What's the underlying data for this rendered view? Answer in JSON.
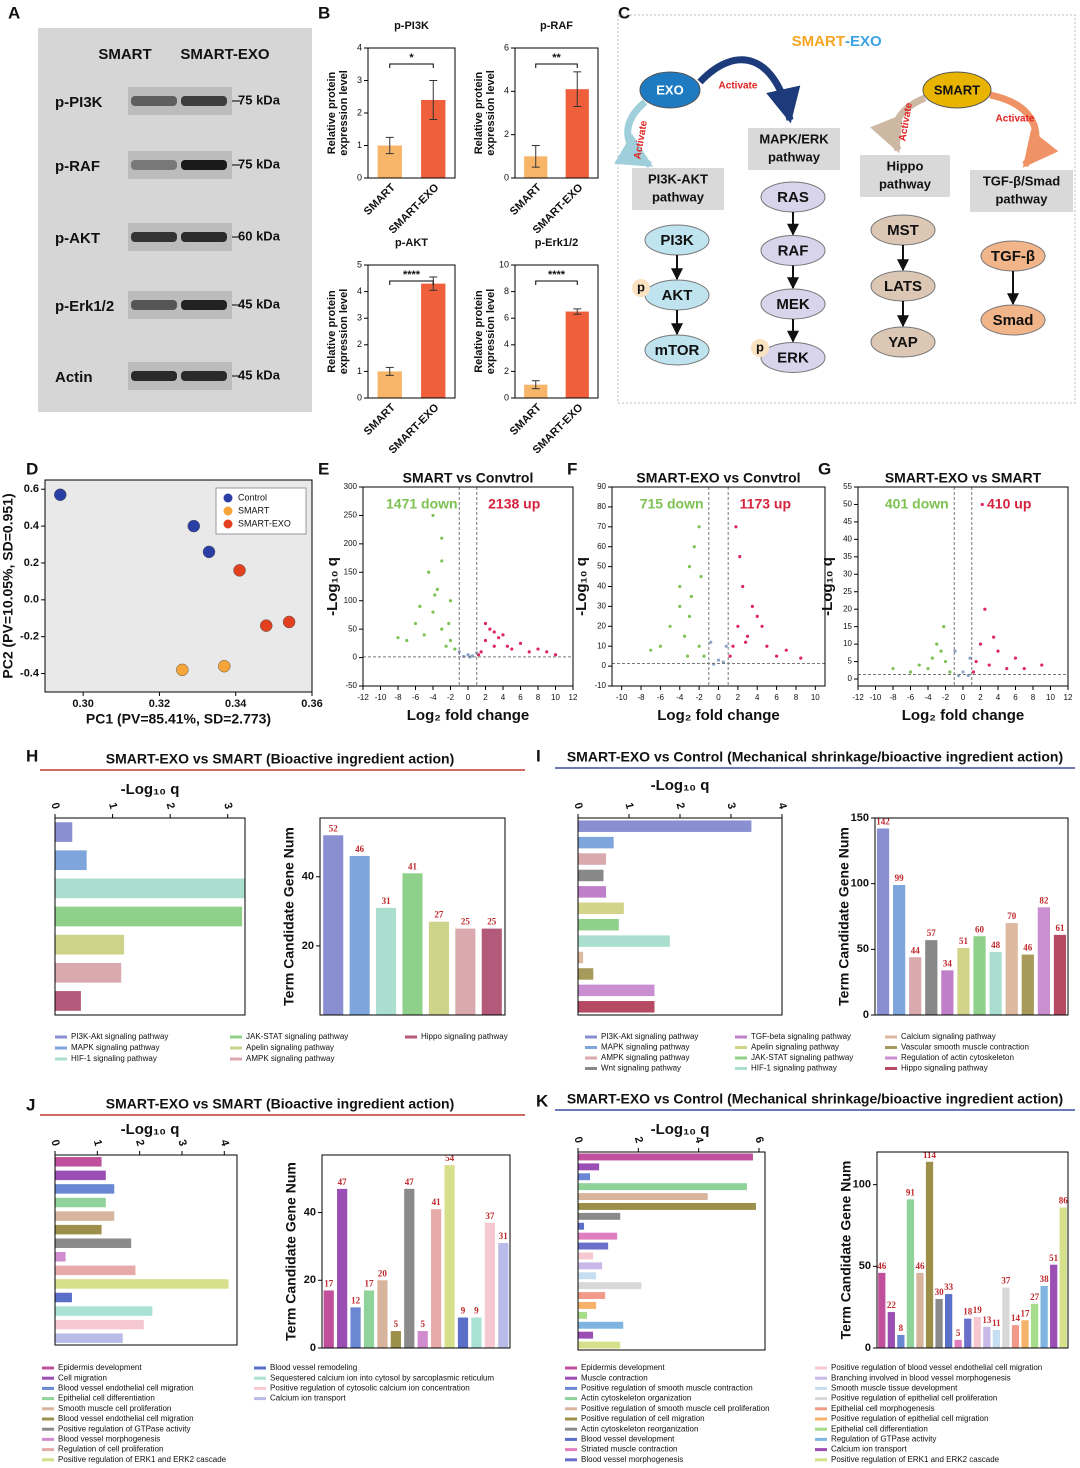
{
  "panel_labels": [
    "A",
    "B",
    "C",
    "D",
    "E",
    "F",
    "G",
    "H",
    "I",
    "J",
    "K"
  ],
  "blot": {
    "lanes": [
      "SMART",
      "SMART-EXO"
    ],
    "rows": [
      {
        "protein": "p-PI3K",
        "marker": "75 kDa"
      },
      {
        "protein": "p-RAF",
        "marker": "75 kDa"
      },
      {
        "protein": "p-AKT",
        "marker": "60 kDa"
      },
      {
        "protein": "p-Erk1/2",
        "marker": "45 kDa"
      },
      {
        "protein": "Actin",
        "marker": "45 kDa"
      }
    ]
  },
  "diagram": {
    "title": [
      "SMART",
      "-EXO"
    ],
    "sources": [
      "EXO",
      "SMART"
    ],
    "activate": [
      "Activate",
      "Activate",
      "Activate",
      "Activate"
    ],
    "pathways": [
      [
        "PI3K-AKT",
        "pathway"
      ],
      [
        "MAPK/ERK",
        "pathway"
      ],
      [
        "Hippo",
        "pathway"
      ],
      [
        "TGF-β/Smad",
        "pathway"
      ]
    ],
    "chains": [
      [
        "PI3K",
        "AKT",
        "mTOR"
      ],
      [
        "RAS",
        "RAF",
        "MEK",
        "ERK"
      ],
      [
        "MST",
        "LATS",
        "YAP"
      ],
      [
        "TGF-β",
        "Smad"
      ]
    ],
    "phospho": [
      "p",
      "p"
    ]
  },
  "chart_data": [
    {
      "type": "bar",
      "title": "p-PI3K",
      "y_label": [
        "Relative protein",
        "expression level"
      ],
      "categories": [
        "SMART",
        "SMART-EXO"
      ],
      "values": [
        1.0,
        2.4
      ],
      "errors": [
        0.25,
        0.6
      ],
      "colors": [
        "#f7b56a",
        "#ef5f3c"
      ],
      "ylim": [
        0,
        4
      ],
      "yticks": [
        0,
        1,
        2,
        3,
        4
      ],
      "significance": "*"
    },
    {
      "type": "bar",
      "title": "p-RAF",
      "y_label": [
        "Relative protein",
        "expression level"
      ],
      "categories": [
        "SMART",
        "SMART-EXO"
      ],
      "values": [
        1.0,
        4.1
      ],
      "errors": [
        0.5,
        0.8
      ],
      "colors": [
        "#f7b56a",
        "#ef5f3c"
      ],
      "ylim": [
        0,
        6
      ],
      "yticks": [
        0,
        2,
        4,
        6
      ],
      "significance": "**"
    },
    {
      "type": "bar",
      "title": "p-AKT",
      "y_label": [
        "Relative protein",
        "expression level"
      ],
      "categories": [
        "SMART",
        "SMART-EXO"
      ],
      "values": [
        1.0,
        4.3
      ],
      "errors": [
        0.15,
        0.25
      ],
      "colors": [
        "#f7b56a",
        "#ef5f3c"
      ],
      "ylim": [
        0,
        5
      ],
      "yticks": [
        0,
        1,
        2,
        3,
        4,
        5
      ],
      "significance": "****"
    },
    {
      "type": "bar",
      "title": "p-Erk1/2",
      "y_label": [
        "Relative protein",
        "expression level"
      ],
      "categories": [
        "SMART",
        "SMART-EXO"
      ],
      "values": [
        1.0,
        6.5
      ],
      "errors": [
        0.3,
        0.2
      ],
      "colors": [
        "#f7b56a",
        "#ef5f3c"
      ],
      "ylim": [
        0,
        10
      ],
      "yticks": [
        0,
        2,
        4,
        6,
        8,
        10
      ],
      "significance": "****"
    },
    {
      "type": "scatter",
      "x_label": "PC1 (PV=85.41%, SD=2.773)",
      "y_label": "PC2 (PV=10.05%, SD=0.951)",
      "legend": "upper right",
      "xlim": [
        0.29,
        0.36
      ],
      "xticks": [
        {
          "value": 0.3,
          "label": "0.30"
        },
        0.32,
        0.34,
        0.36
      ],
      "ylim": [
        -0.5,
        0.65
      ],
      "yticks": [
        -0.4,
        -0.2,
        {
          "value": 0,
          "label": "0.0"
        },
        0.2,
        0.4,
        0.6
      ],
      "series": [
        {
          "name": "Control",
          "color": "#2b3ea6",
          "x": [
            0.294,
            0.329,
            0.333
          ],
          "values": [
            0.57,
            0.4,
            0.26
          ]
        },
        {
          "name": "SMART",
          "color": "#f5a53a",
          "x": [
            0.326,
            0.337
          ],
          "values": [
            -0.38,
            -0.36
          ]
        },
        {
          "name": "SMART-EXO",
          "color": "#e2401f",
          "x": [
            0.341,
            0.348,
            0.354
          ],
          "values": [
            0.16,
            -0.14,
            -0.12
          ]
        }
      ]
    },
    {
      "type": "volcano",
      "title": "SMART vs Convtrol",
      "x_label": "Log₂ fold change",
      "y_label": "-Log₁₀ q",
      "xlim": [
        -12,
        12
      ],
      "xticks": [
        -12,
        -10,
        -8,
        -6,
        -4,
        -2,
        0,
        2,
        4,
        6,
        8,
        10,
        12
      ],
      "ylim": [
        -50,
        300
      ],
      "yticks": [
        -50,
        0,
        50,
        100,
        150,
        200,
        250,
        300
      ],
      "cutoff_x": [
        -1,
        1
      ],
      "cutoff_y": 1.3,
      "annotations": [
        {
          "text": "1471 down",
          "color": "#7dc253"
        },
        {
          "text": "2138 up",
          "color": "#d7223f"
        }
      ],
      "series": [
        {
          "color": "#7dc253",
          "x": [
            -2,
            -3,
            -4,
            -5,
            -3.5,
            -2.5,
            -6,
            -4.5,
            -3,
            -2,
            -7,
            -5.5,
            -1.5,
            -4,
            -3,
            -8,
            -2.2,
            -3.8
          ],
          "values": [
            30,
            50,
            80,
            40,
            120,
            20,
            60,
            150,
            210,
            100,
            30,
            90,
            15,
            250,
            170,
            35,
            60,
            110
          ]
        },
        {
          "color": "#e0245e",
          "x": [
            1.5,
            2,
            3,
            4,
            5,
            6,
            7,
            2.5,
            3.5,
            4.5,
            8,
            9,
            10,
            2,
            3,
            1.2
          ],
          "values": [
            10,
            30,
            20,
            40,
            15,
            25,
            10,
            50,
            35,
            20,
            15,
            10,
            5,
            60,
            45,
            5
          ]
        },
        {
          "color": "#8ea5c9",
          "x": [
            -0.5,
            0,
            0.5,
            -1,
            1,
            0.2
          ],
          "values": [
            2,
            5,
            3,
            10,
            8,
            1
          ]
        }
      ]
    },
    {
      "type": "volcano",
      "title": "SMART-EXO vs Convtrol",
      "x_label": "Log₂ fold change",
      "y_label": "-Log₁₀ q",
      "xlim": [
        -11,
        11
      ],
      "xticks": [
        -10,
        -8,
        -6,
        -4,
        -2,
        0,
        2,
        4,
        6,
        8,
        10
      ],
      "ylim": [
        -10,
        90
      ],
      "yticks": [
        -10,
        0,
        10,
        20,
        30,
        40,
        50,
        60,
        70,
        80,
        90
      ],
      "cutoff_x": [
        -1,
        1
      ],
      "cutoff_y": 1.3,
      "annotations": [
        {
          "text": "715 down",
          "color": "#7dc253"
        },
        {
          "text": "1173 up",
          "color": "#d7223f"
        }
      ],
      "series": [
        {
          "color": "#7dc253",
          "x": [
            -2,
            -3,
            -4,
            -2.5,
            -3.5,
            -5,
            -1.5,
            -2,
            -3,
            -6,
            -4,
            -2.8,
            -1.8,
            -3.2,
            -7
          ],
          "values": [
            10,
            25,
            40,
            60,
            15,
            20,
            5,
            70,
            50,
            10,
            30,
            35,
            45,
            5,
            8
          ]
        },
        {
          "color": "#e0245e",
          "x": [
            1.5,
            2,
            2.5,
            3,
            4,
            5,
            6,
            2.2,
            3.5,
            1.8,
            7,
            2.8,
            1.2,
            4.5,
            8.5
          ],
          "values": [
            10,
            20,
            40,
            15,
            25,
            10,
            5,
            55,
            30,
            70,
            8,
            12,
            5,
            20,
            4
          ]
        },
        {
          "color": "#8ea5c9",
          "x": [
            -0.5,
            0,
            0.5,
            -0.8,
            0.8
          ],
          "values": [
            1,
            3,
            2,
            12,
            10
          ]
        }
      ]
    },
    {
      "type": "volcano",
      "title": "SMART-EXO vs SMART",
      "x_label": "Log₂ fold change",
      "y_label": "-Log₁₀ q",
      "xlim": [
        -12,
        12
      ],
      "xticks": [
        -12,
        -10,
        -8,
        -6,
        -4,
        -2,
        0,
        2,
        4,
        6,
        8,
        10,
        12
      ],
      "ylim": [
        -2,
        55
      ],
      "yticks": [
        0,
        5,
        10,
        15,
        20,
        25,
        30,
        35,
        40,
        45,
        50,
        55
      ],
      "cutoff_x": [
        -1,
        1
      ],
      "cutoff_y": 1.3,
      "annotations": [
        {
          "text": "401 down",
          "color": "#7dc253"
        },
        {
          "text": "410 up",
          "color": "#d7223f"
        }
      ],
      "series": [
        {
          "color": "#7dc253",
          "x": [
            -2,
            -3,
            -4,
            -2.5,
            -5,
            -1.5,
            -3.5,
            -6,
            -8,
            -2.2
          ],
          "values": [
            5,
            10,
            3,
            8,
            4,
            2,
            6,
            2,
            3,
            15
          ]
        },
        {
          "color": "#e0245e",
          "x": [
            1.5,
            2,
            3,
            4,
            2.5,
            5,
            6,
            1.2,
            3.5,
            2.2,
            7,
            9
          ],
          "values": [
            5,
            10,
            4,
            8,
            20,
            3,
            6,
            2,
            12,
            50,
            3,
            4
          ]
        },
        {
          "color": "#8ea5c9",
          "x": [
            -0.5,
            0,
            0.6,
            -0.9,
            0.8
          ],
          "values": [
            1,
            2,
            1,
            8,
            6
          ]
        }
      ]
    },
    {
      "type": "enrichment",
      "title": "SMART-EXO vs SMART (Bioactive ingredient action)",
      "underline_color": "#c0392b",
      "x_label": "-Log₁₀ q",
      "y_label": "Term Candidate Gene Num",
      "categories": [
        "PI3K-Akt signaling pathway",
        "MAPK signaling pathway",
        "HIF-1 signaling pathway",
        "JAK-STAT signaling pathway",
        "Apelin signaling pathway",
        "AMPK signaling pathway",
        "Hippo signaling pathway"
      ],
      "colors": [
        "#8a8fd2",
        "#7fa6dc",
        "#aadfd0",
        "#8fd08b",
        "#ced38a",
        "#d9a9ad",
        "#b3597a"
      ],
      "log_q": [
        0.3,
        0.55,
        3.3,
        3.25,
        1.2,
        1.15,
        0.45
      ],
      "gene_counts": [
        52,
        46,
        31,
        41,
        27,
        25,
        25
      ],
      "xlim": [
        0,
        3.3
      ],
      "xticks": [
        0,
        1,
        2,
        3
      ],
      "ylim": [
        0,
        57
      ],
      "yticks": [
        20,
        40
      ],
      "legend_rows": 3
    },
    {
      "type": "enrichment",
      "title": "SMART-EXO vs Control (Mechanical shrinkage/bioactive ingredient action)",
      "underline_color": "#3b4ba0",
      "x_label": "-Log₁₀ q",
      "y_label": "Term Candidate Gene Num",
      "categories": [
        "PI3K-Akt signaling pathway",
        "MAPK signaling pathway",
        "AMPK signaling pathway",
        "Wnt signaling pathway",
        "TGF-beta signaling pathway",
        "Apelin signaling pathway",
        "JAK-STAT signaling pathway",
        "HIF-1 signaling pathway",
        "Calcium signaling pathway",
        "Vascular smooth muscle contraction",
        "Regulation of actin cytoskeleton",
        "Hippo signaling pathway"
      ],
      "colors": [
        "#8a8fd2",
        "#7fa6dc",
        "#d9a9ad",
        "#888888",
        "#c07fc9",
        "#d2d48a",
        "#8fd08b",
        "#aadfd0",
        "#ddb9a0",
        "#a89a5a",
        "#c98fd0",
        "#b74a63"
      ],
      "log_q": [
        3.4,
        0.7,
        0.55,
        0.5,
        0.55,
        0.9,
        0.8,
        1.8,
        0.1,
        0.3,
        1.5,
        1.5
      ],
      "gene_counts": [
        142,
        99,
        44,
        57,
        34,
        51,
        60,
        48,
        70,
        46,
        82,
        61
      ],
      "xlim": [
        0,
        4
      ],
      "xticks": [
        0,
        1,
        2,
        3,
        4
      ],
      "ylim": [
        0,
        150
      ],
      "yticks": [
        0,
        50,
        100,
        150
      ],
      "legend_rows": 4
    },
    {
      "type": "enrichment",
      "title": "SMART-EXO vs SMART (Bioactive ingredient action)",
      "underline_color": "#c0392b",
      "x_label": "-Log₁₀ q",
      "y_label": "Term Candidate Gene Num",
      "categories": [
        "Epidermis development",
        "Cell migration",
        "Blood vessel endothelial cell migration",
        "Epithelial cell differentiation",
        "Smooth muscle cell proliferation",
        "Blood vessel endothelial cell migration",
        "Positive regulation of GTPase activity",
        "Blood vessel morphogenesis",
        "Regulation of cell proliferation",
        "Positive regulation of ERK1 and ERK2 cascade",
        "Blood vessel remodeling",
        "Sequestered calcium ion into cytosol by sarcoplasmic reticulum",
        "Positive regulation of cytosolic calcium ion concentration",
        "Calcium ion transport"
      ],
      "colors": [
        "#c0509b",
        "#9b4fb5",
        "#6a87d3",
        "#8fd39a",
        "#d9b49c",
        "#9c8f4a",
        "#8a8a8a",
        "#d08ccf",
        "#e8a9a9",
        "#d6df8a",
        "#5a6fc7",
        "#a9e2d2",
        "#f6c9d0",
        "#b9bce8"
      ],
      "log_q": [
        1.1,
        1.2,
        1.4,
        1.2,
        1.4,
        1.1,
        1.8,
        0.25,
        1.9,
        4.1,
        0.4,
        2.3,
        2.1,
        1.6
      ],
      "gene_counts": [
        17,
        47,
        12,
        17,
        20,
        5,
        47,
        5,
        41,
        54,
        9,
        9,
        37,
        31
      ],
      "xlim": [
        0,
        4.3
      ],
      "xticks": [
        0,
        1,
        2,
        3,
        4
      ],
      "ylim": [
        0,
        57
      ],
      "yticks": [
        0,
        20,
        40
      ],
      "legend_rows": 10
    },
    {
      "type": "enrichment",
      "title": "SMART-EXO vs Control (Mechanical shrinkage/bioactive ingredient action)",
      "underline_color": "#3b4ba0",
      "x_label": "-Log₁₀ q",
      "y_label": "Term Candidate Gene Num",
      "categories": [
        "Epidermis development",
        "Muscle contraction",
        "Positive regulation of smooth muscle contraction",
        "Actin cytoskeleton organization",
        "Positive regulation of smooth muscle cell proliferation",
        "Positive regulation of cell migration",
        "Actin cytoskeleton reorganization",
        "Blood vessel development",
        "Striated muscle contraction",
        "Blood vessel morphogenesis",
        "Positive regulation of blood vessel endothelial cell migration",
        "Branching involved in blood vessel morphogenesis",
        "Smooth muscle tissue development",
        "Positive regulation of epithelial cell proliferation",
        "Epithelial cell morphogenesis",
        "Positive regulation of epithelial cell migration",
        "Epithelial cell differentiation",
        "Regulation of GTPase activity",
        "Calcium ion transport",
        "Positive regulation of ERK1 and ERK2 cascade"
      ],
      "colors": [
        "#c0509b",
        "#9b4fb5",
        "#6a87d3",
        "#8fd39a",
        "#d9b49c",
        "#9c8f4a",
        "#8a8a8a",
        "#5a6fc7",
        "#e07fc0",
        "#6a70c9",
        "#f6c9d0",
        "#c9b8e8",
        "#c6def2",
        "#d8d8d8",
        "#f29a8a",
        "#f5b36a",
        "#a6dc8a",
        "#7fb4e0",
        "#9b4fb5",
        "#d6df8a"
      ],
      "log_q": [
        5.8,
        0.7,
        0.4,
        5.6,
        4.3,
        5.9,
        1.4,
        0.2,
        1.3,
        1.0,
        0.5,
        0.8,
        0.6,
        2.1,
        0.9,
        0.6,
        0.3,
        1.5,
        0.5,
        1.4
      ],
      "gene_counts": [
        46,
        22,
        8,
        91,
        46,
        114,
        30,
        33,
        5,
        18,
        19,
        13,
        11,
        37,
        14,
        17,
        27,
        38,
        51,
        86
      ],
      "xlim": [
        0,
        6.2
      ],
      "xticks": [
        0,
        2,
        4,
        6
      ],
      "ylim": [
        0,
        120
      ],
      "yticks": [
        0,
        50,
        100
      ],
      "legend_rows": 10
    }
  ]
}
